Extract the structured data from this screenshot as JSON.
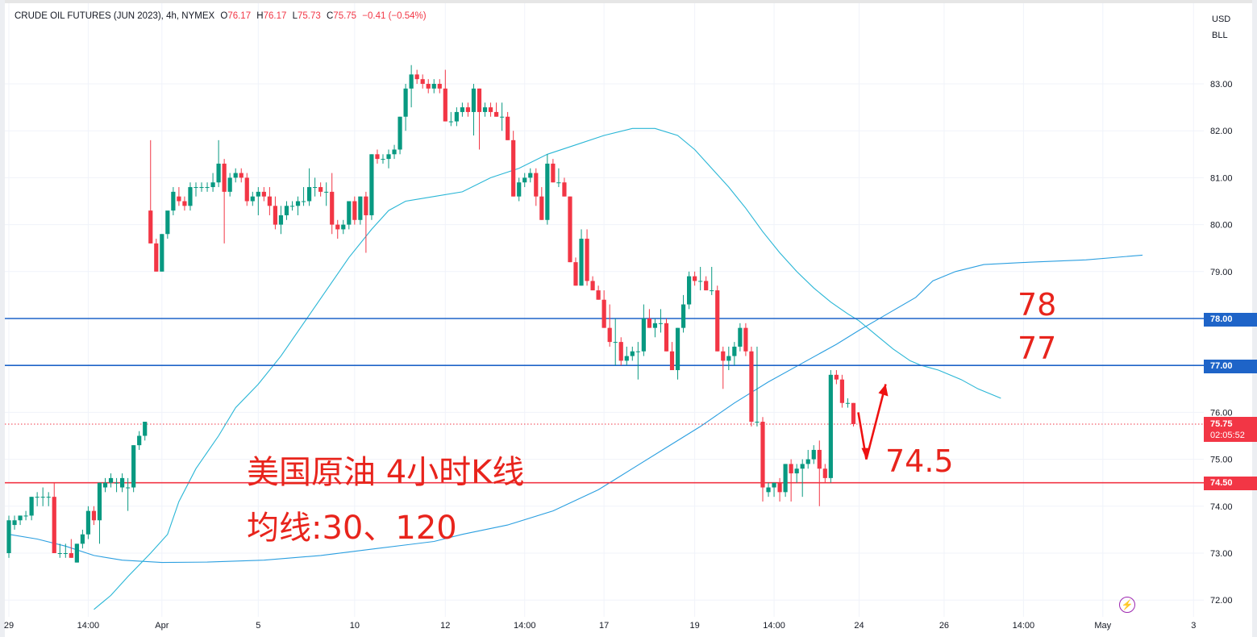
{
  "legend": {
    "symbol": "CRUDE OIL FUTURES (JUN 2023), 4h, NYMEX",
    "open_key": "O",
    "open": "76.17",
    "high_key": "H",
    "high": "76.17",
    "low_key": "L",
    "low": "75.73",
    "close_key": "C",
    "close": "75.75",
    "change": "−0.41 (−0.54%)"
  },
  "currency": {
    "line1": "USD",
    "line2": "BLL"
  },
  "annotations": {
    "title": "美国原油 4小时K线",
    "moving_averages": "均线:30、120",
    "level_78": "78",
    "level_77": "77",
    "level_745": "74.5"
  },
  "price_labels": {
    "l78": "78.00",
    "l77": "77.00",
    "l745": "74.50",
    "current": "75.75",
    "countdown": "02:05:52"
  },
  "colors": {
    "up": "#089981",
    "down": "#f23645",
    "ma30": "#2b9fe0",
    "ma120": "#29b6d6",
    "level_blue": "#1e64c8",
    "level_red": "#f23645",
    "annotation": "#e8241c",
    "grid": "#f0f3fa"
  },
  "icons": {
    "alert": "flash-icon"
  },
  "chart_data": {
    "type": "candlestick",
    "ylim": [
      71.7,
      83.7
    ],
    "y_ticks": [
      72,
      73,
      74,
      75,
      76,
      77,
      78,
      79,
      80,
      81,
      82,
      83
    ],
    "y_tick_labels": [
      "72.00",
      "73.00",
      "74.00",
      "75.00",
      "76.00",
      "77.00",
      "78.00",
      "79.00",
      "80.00",
      "81.00",
      "82.00",
      "83.00"
    ],
    "x_ticks": [
      {
        "label": "29",
        "bar": 0
      },
      {
        "label": "14:00",
        "bar": 14
      },
      {
        "label": "Apr",
        "bar": 27
      },
      {
        "label": "5",
        "bar": 44
      },
      {
        "label": "10",
        "bar": 61
      },
      {
        "label": "12",
        "bar": 77
      },
      {
        "label": "14:00",
        "bar": 91
      },
      {
        "label": "17",
        "bar": 105
      },
      {
        "label": "19",
        "bar": 121
      },
      {
        "label": "14:00",
        "bar": 135
      },
      {
        "label": "24",
        "bar": 150
      },
      {
        "label": "26",
        "bar": 165
      },
      {
        "label": "14:00",
        "bar": 179
      },
      {
        "label": "May",
        "bar": 193
      },
      {
        "label": "3",
        "bar": 209
      }
    ],
    "horizontal_levels": [
      {
        "value": 78.0,
        "color": "#1e64c8"
      },
      {
        "value": 77.0,
        "color": "#1e64c8"
      },
      {
        "value": 74.5,
        "color": "#f23645"
      }
    ],
    "last_price": 75.75,
    "candles": [
      [
        73.0,
        73.8,
        72.9,
        73.7
      ],
      [
        73.6,
        73.8,
        73.5,
        73.7
      ],
      [
        73.7,
        73.8,
        73.6,
        73.8
      ],
      [
        73.8,
        73.9,
        73.7,
        73.8
      ],
      [
        73.8,
        74.2,
        73.7,
        74.2
      ],
      [
        74.2,
        74.3,
        74.0,
        74.2
      ],
      [
        74.2,
        74.4,
        74.0,
        74.2
      ],
      [
        74.2,
        74.3,
        74.0,
        74.2
      ],
      [
        74.2,
        74.5,
        73.0,
        73.0
      ],
      [
        73.0,
        73.2,
        72.9,
        73.0
      ],
      [
        73.0,
        73.2,
        72.9,
        73.0
      ],
      [
        73.0,
        73.3,
        72.9,
        72.9
      ],
      [
        72.8,
        73.2,
        72.8,
        73.2
      ],
      [
        73.2,
        73.5,
        73.1,
        73.4
      ],
      [
        73.4,
        74.0,
        73.3,
        73.9
      ],
      [
        73.9,
        74.0,
        73.6,
        73.7
      ],
      [
        73.7,
        74.5,
        73.2,
        74.5
      ],
      [
        74.4,
        74.6,
        74.3,
        74.5
      ],
      [
        74.5,
        74.7,
        74.4,
        74.6
      ],
      [
        74.5,
        74.6,
        74.3,
        74.5
      ],
      [
        74.4,
        74.7,
        74.3,
        74.6
      ],
      [
        74.4,
        74.6,
        73.9,
        74.4
      ],
      [
        74.4,
        75.3,
        74.3,
        75.3
      ],
      [
        75.3,
        75.6,
        75.2,
        75.5
      ],
      [
        75.5,
        75.8,
        75.4,
        75.8
      ],
      [
        80.3,
        81.8,
        79.6,
        79.6
      ],
      [
        79.6,
        79.7,
        79.0,
        79.0
      ],
      [
        79.0,
        79.8,
        79.0,
        79.8
      ],
      [
        79.8,
        80.2,
        79.7,
        80.3
      ],
      [
        80.3,
        80.8,
        80.2,
        80.7
      ],
      [
        80.6,
        80.8,
        80.4,
        80.5
      ],
      [
        80.5,
        80.6,
        80.3,
        80.4
      ],
      [
        80.4,
        80.9,
        80.3,
        80.8
      ],
      [
        80.8,
        80.9,
        80.6,
        80.8
      ],
      [
        80.8,
        80.9,
        80.7,
        80.8
      ],
      [
        80.8,
        80.9,
        80.7,
        80.8
      ],
      [
        80.8,
        81.1,
        80.7,
        80.9
      ],
      [
        80.9,
        81.8,
        80.8,
        81.3
      ],
      [
        81.3,
        81.4,
        79.6,
        80.7
      ],
      [
        80.7,
        81.1,
        80.6,
        81.0
      ],
      [
        81.0,
        81.2,
        80.9,
        81.1
      ],
      [
        81.1,
        81.2,
        80.9,
        81.0
      ],
      [
        81.0,
        81.1,
        80.4,
        80.5
      ],
      [
        80.5,
        80.7,
        80.4,
        80.6
      ],
      [
        80.6,
        80.8,
        80.2,
        80.7
      ],
      [
        80.7,
        80.8,
        80.5,
        80.6
      ],
      [
        80.6,
        80.8,
        80.2,
        80.4
      ],
      [
        80.4,
        80.6,
        79.9,
        80.0
      ],
      [
        80.0,
        80.4,
        79.8,
        80.2
      ],
      [
        80.2,
        80.5,
        80.1,
        80.4
      ],
      [
        80.4,
        80.5,
        80.3,
        80.4
      ],
      [
        80.4,
        80.6,
        80.2,
        80.5
      ],
      [
        80.5,
        80.8,
        80.4,
        80.5
      ],
      [
        80.5,
        81.2,
        80.4,
        80.8
      ],
      [
        80.8,
        81.0,
        80.6,
        80.8
      ],
      [
        80.8,
        80.9,
        80.6,
        80.7
      ],
      [
        80.7,
        80.9,
        80.4,
        80.7
      ],
      [
        80.7,
        81.1,
        79.8,
        80.0
      ],
      [
        80.0,
        80.1,
        79.7,
        79.9
      ],
      [
        79.9,
        80.1,
        79.8,
        80.0
      ],
      [
        80.0,
        80.4,
        79.9,
        80.5
      ],
      [
        80.5,
        80.6,
        80.0,
        80.1
      ],
      [
        80.1,
        80.6,
        80.0,
        80.6
      ],
      [
        80.6,
        80.7,
        79.4,
        80.2
      ],
      [
        80.2,
        81.5,
        80.1,
        81.5
      ],
      [
        81.5,
        81.6,
        81.3,
        81.4
      ],
      [
        81.4,
        81.5,
        81.3,
        81.4
      ],
      [
        81.4,
        81.6,
        81.2,
        81.5
      ],
      [
        81.5,
        81.7,
        81.4,
        81.6
      ],
      [
        81.6,
        82.3,
        81.5,
        82.3
      ],
      [
        82.3,
        83.0,
        82.0,
        82.9
      ],
      [
        82.9,
        83.4,
        82.5,
        83.2
      ],
      [
        83.2,
        83.3,
        83.0,
        83.1
      ],
      [
        83.1,
        83.2,
        82.9,
        83.0
      ],
      [
        83.0,
        83.1,
        82.8,
        82.9
      ],
      [
        82.9,
        83.1,
        82.8,
        83.0
      ],
      [
        83.0,
        83.1,
        82.8,
        82.9
      ],
      [
        82.9,
        83.3,
        82.2,
        82.2
      ],
      [
        82.2,
        82.4,
        82.1,
        82.2
      ],
      [
        82.2,
        82.5,
        82.1,
        82.4
      ],
      [
        82.4,
        82.6,
        82.3,
        82.5
      ],
      [
        82.5,
        82.6,
        82.3,
        82.4
      ],
      [
        82.4,
        83.0,
        81.9,
        82.9
      ],
      [
        82.9,
        82.9,
        81.6,
        82.4
      ],
      [
        82.4,
        82.6,
        82.3,
        82.5
      ],
      [
        82.5,
        82.6,
        82.3,
        82.4
      ],
      [
        82.4,
        82.6,
        82.3,
        82.3
      ],
      [
        82.3,
        82.6,
        82.0,
        82.3
      ],
      [
        82.3,
        82.4,
        81.8,
        81.8
      ],
      [
        81.8,
        82.0,
        80.6,
        80.6
      ],
      [
        80.6,
        81.0,
        80.5,
        80.9
      ],
      [
        80.9,
        81.1,
        80.8,
        81.0
      ],
      [
        81.0,
        81.2,
        80.9,
        81.1
      ],
      [
        81.1,
        81.2,
        80.4,
        80.6
      ],
      [
        80.6,
        80.8,
        80.1,
        80.1
      ],
      [
        80.1,
        81.5,
        80.0,
        81.3
      ],
      [
        81.3,
        81.4,
        80.9,
        80.9
      ],
      [
        80.9,
        81.2,
        80.8,
        80.9
      ],
      [
        80.9,
        81.0,
        80.6,
        80.6
      ],
      [
        80.6,
        80.6,
        79.2,
        79.2
      ],
      [
        79.2,
        79.3,
        78.7,
        78.7
      ],
      [
        78.7,
        79.9,
        78.7,
        79.7
      ],
      [
        79.7,
        79.9,
        78.7,
        78.8
      ],
      [
        78.8,
        78.9,
        78.6,
        78.6
      ],
      [
        78.6,
        78.7,
        78.4,
        78.4
      ],
      [
        78.4,
        78.6,
        77.8,
        77.8
      ],
      [
        77.8,
        78.3,
        77.4,
        77.5
      ],
      [
        77.5,
        78.0,
        77.0,
        77.5
      ],
      [
        77.5,
        77.6,
        77.0,
        77.1
      ],
      [
        77.1,
        77.4,
        77.0,
        77.2
      ],
      [
        77.2,
        77.4,
        77.1,
        77.3
      ],
      [
        77.3,
        77.5,
        76.7,
        77.3
      ],
      [
        77.3,
        78.3,
        77.2,
        78.0
      ],
      [
        78.0,
        78.2,
        77.8,
        77.8
      ],
      [
        77.8,
        78.0,
        77.6,
        77.9
      ],
      [
        77.9,
        78.2,
        77.7,
        77.9
      ],
      [
        77.9,
        78.0,
        77.3,
        77.3
      ],
      [
        77.3,
        77.5,
        76.9,
        76.9
      ],
      [
        76.9,
        77.8,
        76.7,
        77.8
      ],
      [
        77.8,
        78.5,
        77.7,
        78.3
      ],
      [
        78.3,
        79.0,
        78.2,
        78.9
      ],
      [
        78.9,
        79.0,
        78.7,
        78.8
      ],
      [
        78.8,
        79.1,
        78.6,
        78.8
      ],
      [
        78.8,
        78.9,
        78.6,
        78.6
      ],
      [
        78.6,
        79.1,
        78.5,
        78.6
      ],
      [
        78.6,
        78.7,
        77.3,
        77.3
      ],
      [
        77.3,
        77.4,
        76.5,
        77.1
      ],
      [
        77.1,
        77.4,
        76.9,
        77.2
      ],
      [
        77.2,
        77.5,
        77.0,
        77.4
      ],
      [
        77.4,
        77.9,
        77.3,
        77.8
      ],
      [
        77.8,
        77.9,
        77.2,
        77.3
      ],
      [
        77.3,
        77.4,
        75.7,
        75.8
      ],
      [
        75.8,
        77.4,
        75.7,
        75.8
      ],
      [
        75.8,
        75.9,
        74.1,
        74.4
      ],
      [
        74.3,
        74.5,
        74.2,
        74.4
      ],
      [
        74.4,
        74.5,
        74.2,
        74.5
      ],
      [
        74.5,
        74.6,
        74.1,
        74.3
      ],
      [
        74.3,
        74.9,
        74.2,
        74.9
      ],
      [
        74.9,
        75.0,
        74.1,
        74.7
      ],
      [
        74.7,
        74.9,
        74.5,
        74.8
      ],
      [
        74.8,
        75.0,
        74.2,
        74.9
      ],
      [
        74.9,
        75.2,
        74.8,
        75.0
      ],
      [
        75.0,
        75.3,
        74.9,
        75.2
      ],
      [
        75.2,
        75.4,
        74.0,
        74.8
      ],
      [
        74.8,
        74.9,
        74.5,
        74.6
      ],
      [
        74.6,
        76.9,
        74.5,
        76.8
      ],
      [
        76.8,
        76.9,
        76.6,
        76.7
      ],
      [
        76.7,
        76.8,
        76.1,
        76.2
      ],
      [
        76.2,
        76.3,
        76.1,
        76.2
      ],
      [
        76.2,
        76.2,
        75.7,
        75.75
      ]
    ],
    "series": [
      {
        "name": "30",
        "values": [
          [
            0,
            73.4
          ],
          [
            5,
            73.3
          ],
          [
            10,
            73.15
          ],
          [
            15,
            72.95
          ],
          [
            20,
            72.85
          ],
          [
            27,
            72.8
          ],
          [
            35,
            72.81
          ],
          [
            45,
            72.85
          ],
          [
            55,
            72.95
          ],
          [
            65,
            73.1
          ],
          [
            75,
            73.25
          ],
          [
            80,
            73.4
          ],
          [
            88,
            73.6
          ],
          [
            96,
            73.9
          ],
          [
            104,
            74.35
          ],
          [
            110,
            74.8
          ],
          [
            116,
            75.25
          ],
          [
            122,
            75.7
          ],
          [
            128,
            76.2
          ],
          [
            134,
            76.65
          ],
          [
            140,
            77.05
          ],
          [
            146,
            77.45
          ],
          [
            150,
            77.75
          ],
          [
            155,
            78.1
          ],
          [
            160,
            78.45
          ],
          [
            163,
            78.8
          ],
          [
            167,
            79.0
          ],
          [
            172,
            79.15
          ],
          [
            180,
            79.2
          ],
          [
            190,
            79.25
          ],
          [
            200,
            79.35
          ]
        ]
      },
      {
        "name": "120",
        "values": [
          [
            15,
            71.8
          ],
          [
            18,
            72.1
          ],
          [
            21,
            72.5
          ],
          [
            25,
            73.0
          ],
          [
            28,
            73.4
          ],
          [
            30,
            74.1
          ],
          [
            33,
            74.8
          ],
          [
            37,
            75.5
          ],
          [
            40,
            76.1
          ],
          [
            44,
            76.6
          ],
          [
            48,
            77.2
          ],
          [
            52,
            77.9
          ],
          [
            56,
            78.6
          ],
          [
            60,
            79.3
          ],
          [
            64,
            79.9
          ],
          [
            67,
            80.3
          ],
          [
            70,
            80.5
          ],
          [
            75,
            80.6
          ],
          [
            80,
            80.7
          ],
          [
            85,
            81.0
          ],
          [
            90,
            81.2
          ],
          [
            95,
            81.5
          ],
          [
            100,
            81.7
          ],
          [
            105,
            81.9
          ],
          [
            110,
            82.05
          ],
          [
            114,
            82.05
          ],
          [
            118,
            81.9
          ],
          [
            121,
            81.6
          ],
          [
            124,
            81.2
          ],
          [
            127,
            80.8
          ],
          [
            130,
            80.35
          ],
          [
            133,
            79.85
          ],
          [
            136,
            79.4
          ],
          [
            139,
            79.0
          ],
          [
            142,
            78.65
          ],
          [
            145,
            78.35
          ],
          [
            148,
            78.1
          ],
          [
            150,
            77.95
          ],
          [
            153,
            77.65
          ],
          [
            156,
            77.35
          ],
          [
            159,
            77.1
          ],
          [
            161,
            77.0
          ],
          [
            164,
            76.9
          ],
          [
            168,
            76.7
          ],
          [
            171,
            76.5
          ],
          [
            175,
            76.3
          ]
        ]
      }
    ]
  }
}
